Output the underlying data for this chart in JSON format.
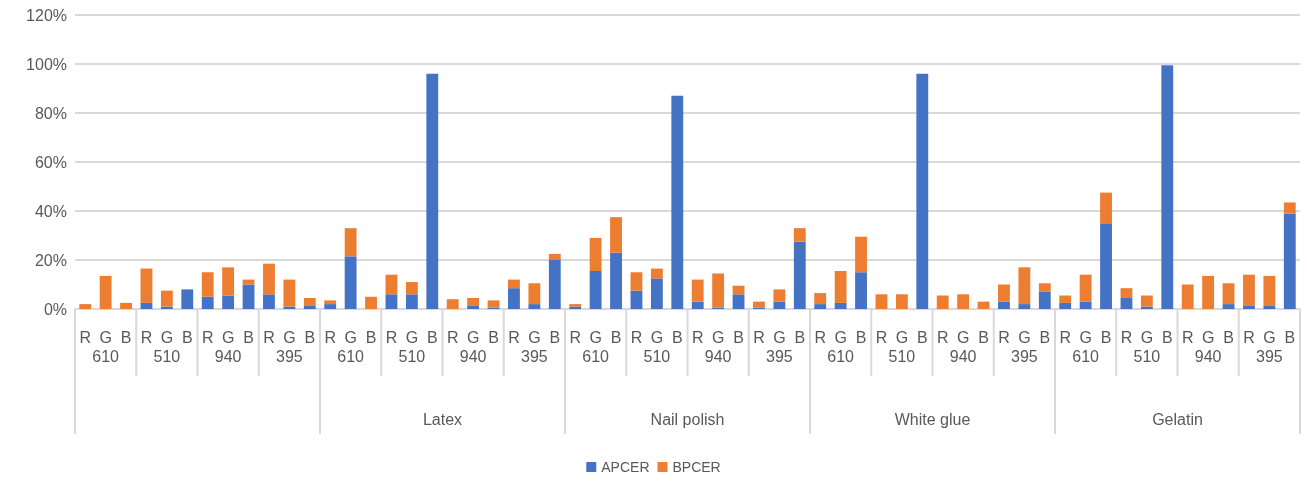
{
  "chart_data": {
    "type": "bar",
    "stacked": true,
    "categories": [
      "R",
      "G",
      "B",
      "R",
      "G",
      "B",
      "R",
      "G",
      "B",
      "R",
      "G",
      "B",
      "R",
      "G",
      "B",
      "R",
      "G",
      "B",
      "R",
      "G",
      "B",
      "R",
      "G",
      "B",
      "R",
      "G",
      "B",
      "R",
      "G",
      "B",
      "R",
      "G",
      "B",
      "R",
      "G",
      "B",
      "R",
      "G",
      "B",
      "R",
      "G",
      "B",
      "R",
      "G",
      "B",
      "R",
      "G",
      "B",
      "R",
      "G",
      "B",
      "R",
      "G",
      "B",
      "R",
      "G",
      "B",
      "R",
      "G",
      "B"
    ],
    "series": [
      {
        "name": "APCER",
        "color": "#4472c4",
        "values": [
          0,
          0,
          0,
          2.5,
          1,
          8,
          5,
          5.5,
          10,
          6,
          1,
          1.5,
          2,
          21.5,
          0,
          6,
          6,
          96,
          0,
          1.5,
          0.5,
          8.5,
          2,
          20,
          1,
          15.5,
          23,
          7.5,
          12.5,
          87,
          3,
          0.5,
          6,
          0.5,
          3,
          27.5,
          2,
          2.5,
          15,
          0,
          0,
          96,
          0,
          0,
          0,
          3,
          2,
          7,
          2.5,
          3,
          35,
          4.5,
          1,
          99.5,
          0,
          0,
          2,
          1.5,
          1.5,
          39
        ]
      },
      {
        "name": "BPCER",
        "color": "#ed7d31",
        "values": [
          2,
          13.5,
          2.5,
          14,
          6.5,
          0,
          10,
          11.5,
          2,
          12.5,
          11,
          3,
          1.5,
          11.5,
          5,
          8,
          5,
          0,
          4,
          3,
          3,
          3.5,
          8.5,
          2.5,
          1,
          13.5,
          14.5,
          7.5,
          4,
          0,
          9,
          14,
          3.5,
          2.5,
          5,
          5.5,
          4.5,
          13,
          14.5,
          6,
          6,
          0,
          5.5,
          6,
          3,
          7,
          15,
          3.5,
          3,
          11,
          12.5,
          4,
          4.5,
          0,
          10,
          13.5,
          8.5,
          12.5,
          12,
          4.5
        ]
      }
    ],
    "ylim": [
      0,
      120
    ],
    "yticks": [
      {
        "value": 0,
        "label": "0%"
      },
      {
        "value": 20,
        "label": "20%"
      },
      {
        "value": 40,
        "label": "40%"
      },
      {
        "value": 60,
        "label": "60%"
      },
      {
        "value": 80,
        "label": "80%"
      },
      {
        "value": 100,
        "label": "100%"
      },
      {
        "value": 120,
        "label": "120%"
      }
    ],
    "grid": "y",
    "legend": "bottom",
    "annotations": [
      "610",
      "510",
      "940",
      "395",
      "610",
      "510",
      "940",
      "395",
      "610",
      "510",
      "940",
      "395",
      "610",
      "510",
      "940",
      "395",
      "610",
      "510",
      "940",
      "395",
      "Latex",
      "Nail polish",
      "White glue",
      "Gelatin"
    ]
  }
}
